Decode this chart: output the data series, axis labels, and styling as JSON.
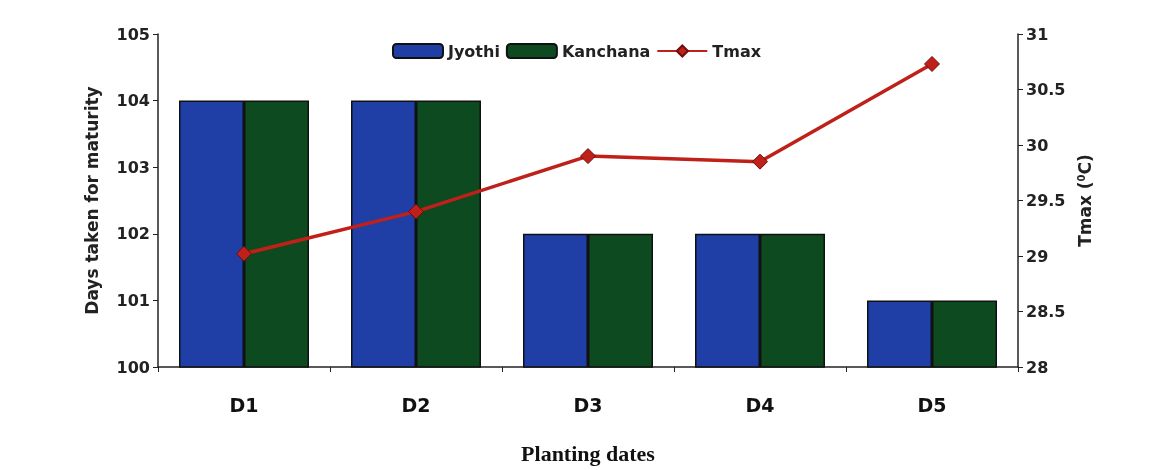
{
  "chart_data": {
    "type": "bar",
    "xlabel": "Planting dates",
    "ylabel": "Days taken for maturity",
    "y2label": "Tmax ($^{0}$C)",
    "categories": [
      "D1",
      "D2",
      "D3",
      "D4",
      "D5"
    ],
    "series": [
      {
        "name": "Jyothi",
        "color": "#1f3fa6",
        "values": [
          104,
          104,
          102,
          102,
          101
        ]
      },
      {
        "name": "Kanchana",
        "color": "#0d4a1f",
        "values": [
          104,
          104,
          102,
          102,
          101
        ]
      },
      {
        "name": "Tmax",
        "type": "line",
        "axis": "y2",
        "color": "#c0201a",
        "marker": "diamond",
        "values": [
          29.02,
          29.4,
          29.9,
          29.85,
          30.73
        ]
      }
    ],
    "ylim": [
      100,
      105
    ],
    "yticks": [
      100,
      101,
      102,
      103,
      104,
      105
    ],
    "y2lim": [
      28,
      31
    ],
    "y2ticks": [
      28,
      28.5,
      29,
      29.5,
      30,
      30.5,
      31
    ],
    "grid": false,
    "legend": "top"
  }
}
